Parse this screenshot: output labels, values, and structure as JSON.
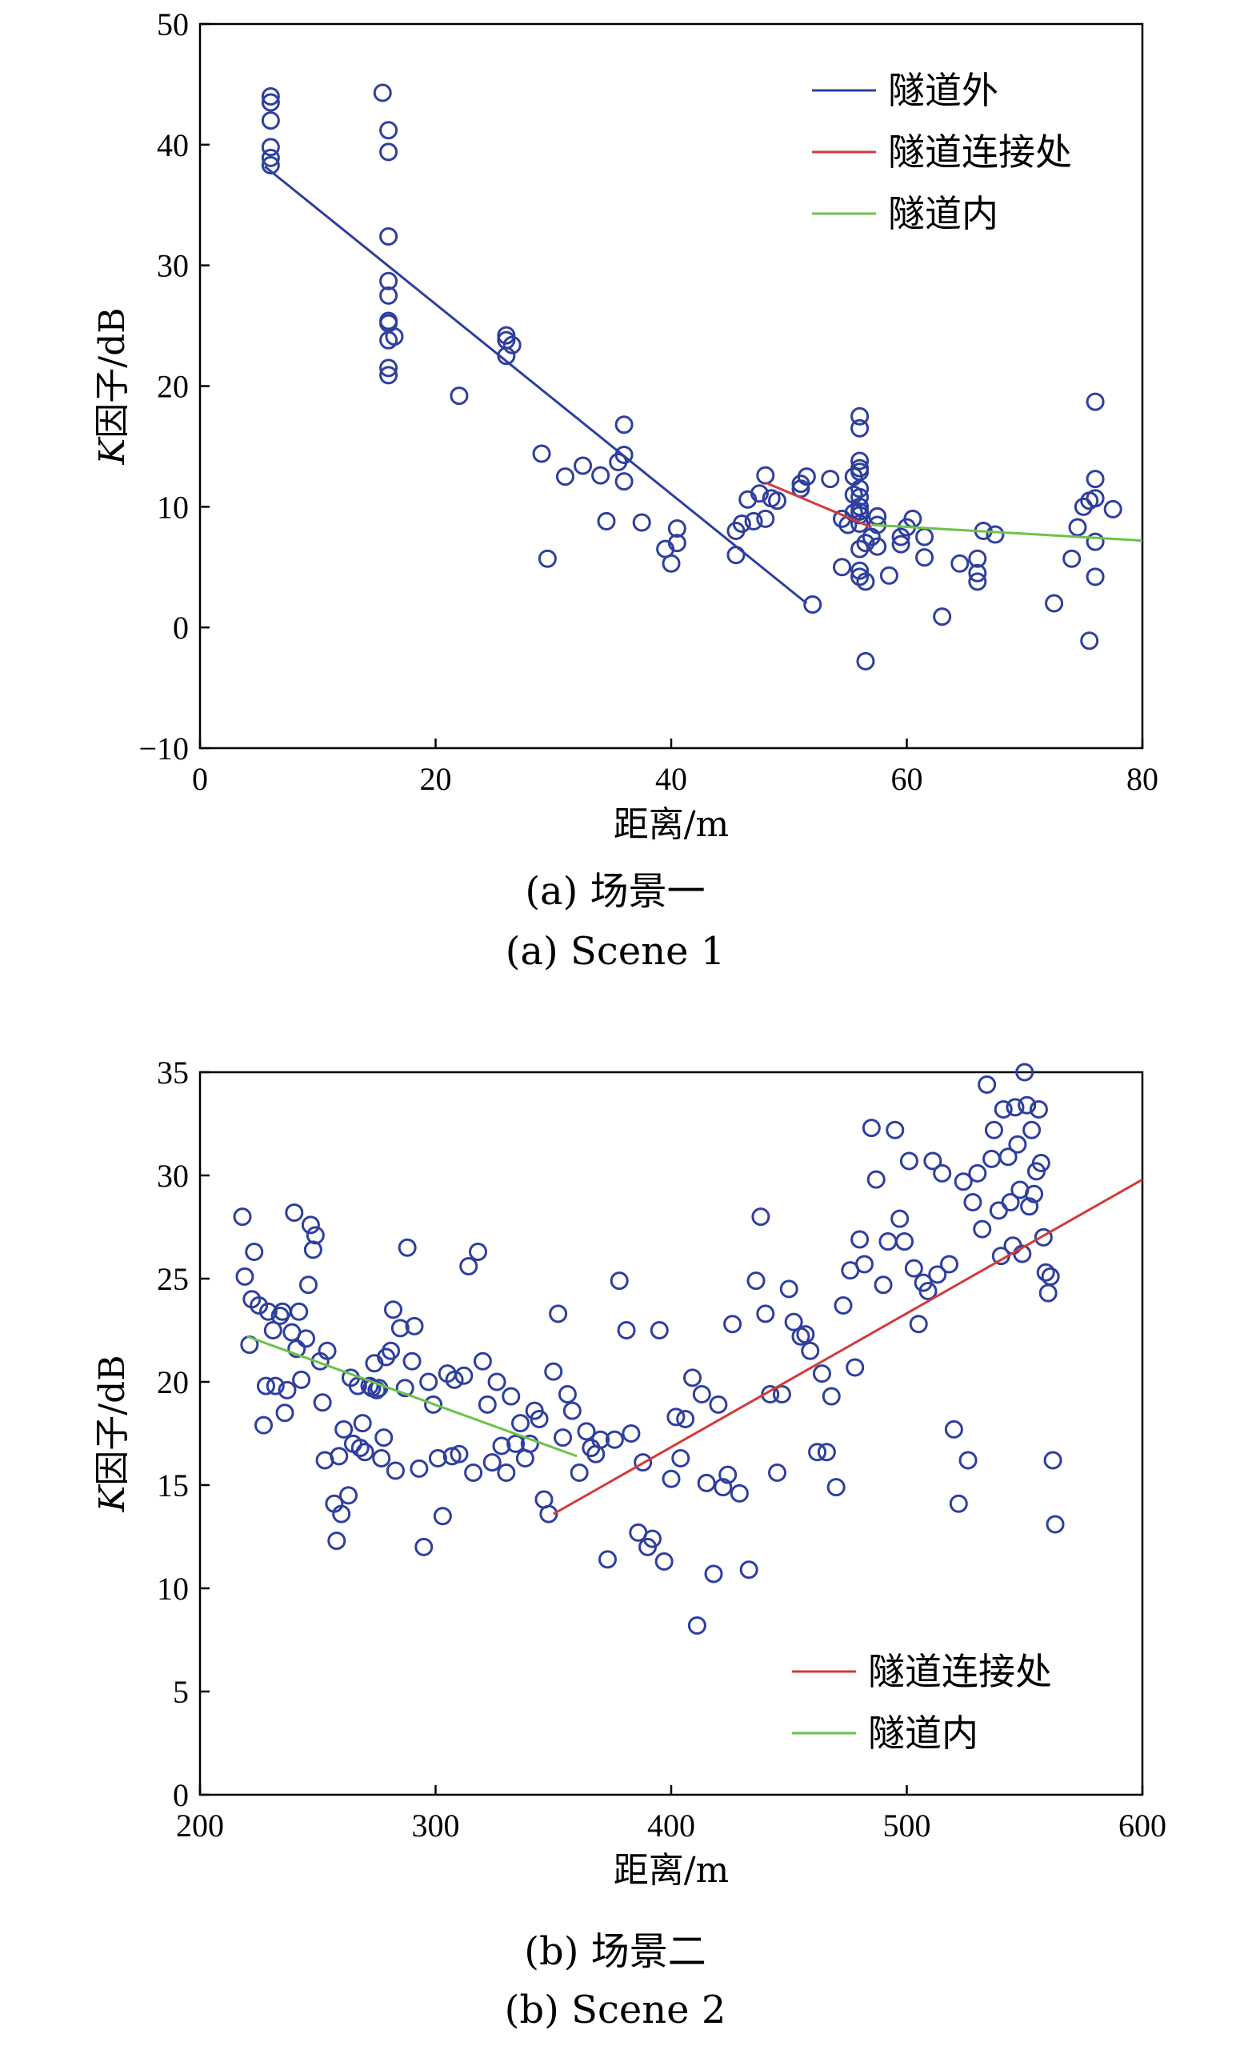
{
  "chart_data": [
    {
      "type": "scatter",
      "xlabel": "距离/m",
      "ylabel_italic": "K",
      "ylabel_rest": "因子/dB",
      "xlim": [
        0,
        80
      ],
      "ylim": [
        -10,
        50
      ],
      "xticks": [
        0,
        20,
        40,
        60,
        80
      ],
      "yticks": [
        -10,
        0,
        10,
        20,
        30,
        40,
        50
      ],
      "xtick_labels": [
        "0",
        "20",
        "40",
        "60",
        "80"
      ],
      "ytick_labels": [
        "−10",
        "0",
        "10",
        "20",
        "30",
        "40",
        "50"
      ],
      "grid": false,
      "legend_position": "top-right",
      "caption_cn": "(a) 场景一",
      "caption_en": "(a) Scene 1",
      "marker_color": "#2e3f9e",
      "points": [
        [
          6,
          44
        ],
        [
          6,
          43.5
        ],
        [
          6,
          42
        ],
        [
          6,
          39.8
        ],
        [
          6,
          38.9
        ],
        [
          6,
          38.3
        ],
        [
          15.5,
          44.3
        ],
        [
          16,
          41.2
        ],
        [
          16,
          39.4
        ],
        [
          16,
          32.4
        ],
        [
          16,
          28.7
        ],
        [
          16,
          27.5
        ],
        [
          16,
          25.4
        ],
        [
          16,
          25.2
        ],
        [
          16,
          23.8
        ],
        [
          16.5,
          24.1
        ],
        [
          16,
          21.5
        ],
        [
          16,
          20.9
        ],
        [
          22,
          19.2
        ],
        [
          26,
          24.2
        ],
        [
          26,
          23.8
        ],
        [
          26.5,
          23.4
        ],
        [
          26,
          22.5
        ],
        [
          29,
          14.4
        ],
        [
          29.5,
          5.7
        ],
        [
          31,
          12.5
        ],
        [
          32.5,
          13.4
        ],
        [
          34,
          12.6
        ],
        [
          34.5,
          8.8
        ],
        [
          35.5,
          13.7
        ],
        [
          36,
          16.8
        ],
        [
          36,
          14.3
        ],
        [
          36,
          12.1
        ],
        [
          37.5,
          8.7
        ],
        [
          39.5,
          6.5
        ],
        [
          40,
          5.3
        ],
        [
          40.5,
          8.2
        ],
        [
          40.5,
          7
        ],
        [
          45.5,
          6
        ],
        [
          45.5,
          8
        ],
        [
          46,
          8.6
        ],
        [
          46.5,
          10.6
        ],
        [
          47,
          8.8
        ],
        [
          47.5,
          11.1
        ],
        [
          48,
          9
        ],
        [
          48,
          12.6
        ],
        [
          48.5,
          10.7
        ],
        [
          49,
          10.5
        ],
        [
          51,
          11.5
        ],
        [
          51,
          11.9
        ],
        [
          51.5,
          12.5
        ],
        [
          52,
          1.9
        ],
        [
          53.5,
          12.3
        ],
        [
          54.5,
          9
        ],
        [
          54.5,
          5
        ],
        [
          55,
          8.5
        ],
        [
          55.5,
          11
        ],
        [
          55.5,
          12.5
        ],
        [
          55.5,
          9.5
        ],
        [
          56,
          17.5
        ],
        [
          56,
          16.5
        ],
        [
          56,
          13.8
        ],
        [
          56,
          13.2
        ],
        [
          56,
          12.9
        ],
        [
          56,
          11.5
        ],
        [
          56,
          10.8
        ],
        [
          56,
          10
        ],
        [
          56,
          9.6
        ],
        [
          56,
          9.3
        ],
        [
          56,
          8.6
        ],
        [
          56,
          6.5
        ],
        [
          56,
          4.7
        ],
        [
          56,
          4.2
        ],
        [
          56.5,
          3.8
        ],
        [
          56.5,
          -2.8
        ],
        [
          56.5,
          7
        ],
        [
          57,
          7.5
        ],
        [
          57.5,
          9.2
        ],
        [
          57.5,
          8.5
        ],
        [
          57.5,
          6.7
        ],
        [
          58.5,
          4.3
        ],
        [
          59.5,
          7.5
        ],
        [
          59.5,
          6.9
        ],
        [
          60,
          8.3
        ],
        [
          60.5,
          9
        ],
        [
          61.5,
          7.5
        ],
        [
          61.5,
          5.8
        ],
        [
          63,
          0.9
        ],
        [
          64.5,
          5.3
        ],
        [
          66,
          5.7
        ],
        [
          66,
          4.5
        ],
        [
          66,
          3.8
        ],
        [
          66.5,
          8
        ],
        [
          67.5,
          7.7
        ],
        [
          72.5,
          2
        ],
        [
          74,
          5.7
        ],
        [
          74.5,
          8.3
        ],
        [
          75,
          10
        ],
        [
          75.5,
          -1.1
        ],
        [
          75.5,
          10.5
        ],
        [
          76,
          18.7
        ],
        [
          76,
          12.3
        ],
        [
          76,
          10.7
        ],
        [
          76,
          7.1
        ],
        [
          76,
          4.2
        ],
        [
          77.5,
          9.8
        ]
      ],
      "series": [
        {
          "name": "隧道外",
          "color": "#2e3f9e",
          "x": [
            5.5,
            51.5
          ],
          "y": [
            38.2,
            2.0
          ]
        },
        {
          "name": "隧道连接处",
          "color": "#d23a3a",
          "x": [
            48,
            57
          ],
          "y": [
            12.0,
            8.3
          ]
        },
        {
          "name": "隧道内",
          "color": "#6cc24a",
          "x": [
            57,
            80
          ],
          "y": [
            8.5,
            7.2
          ]
        }
      ]
    },
    {
      "type": "scatter",
      "xlabel": "距离/m",
      "ylabel_italic": "K",
      "ylabel_rest": "因子/dB",
      "xlim": [
        200,
        600
      ],
      "ylim": [
        0,
        35
      ],
      "xticks": [
        200,
        300,
        400,
        500,
        600
      ],
      "yticks": [
        0,
        5,
        10,
        15,
        20,
        25,
        30,
        35
      ],
      "xtick_labels": [
        "200",
        "300",
        "400",
        "500",
        "600"
      ],
      "ytick_labels": [
        "0",
        "5",
        "10",
        "15",
        "20",
        "25",
        "30",
        "35"
      ],
      "grid": false,
      "legend_position": "bottom-right",
      "caption_cn": "(b) 场景二",
      "caption_en": "(b) Scene 2",
      "marker_color": "#2e3f9e",
      "points": [
        [
          218,
          28
        ],
        [
          219,
          25.1
        ],
        [
          221,
          21.8
        ],
        [
          222,
          24
        ],
        [
          223,
          26.3
        ],
        [
          225,
          23.7
        ],
        [
          227,
          17.9
        ],
        [
          228,
          19.8
        ],
        [
          229,
          23.4
        ],
        [
          231,
          22.5
        ],
        [
          232,
          19.8
        ],
        [
          234,
          23.2
        ],
        [
          235,
          23.4
        ],
        [
          236,
          18.5
        ],
        [
          237,
          19.6
        ],
        [
          239,
          22.4
        ],
        [
          240,
          28.2
        ],
        [
          241,
          21.6
        ],
        [
          242,
          23.4
        ],
        [
          243,
          20.1
        ],
        [
          245,
          22.1
        ],
        [
          246,
          24.7
        ],
        [
          247,
          27.6
        ],
        [
          248,
          26.4
        ],
        [
          249,
          27.1
        ],
        [
          251,
          21
        ],
        [
          252,
          19
        ],
        [
          253,
          16.2
        ],
        [
          254,
          21.5
        ],
        [
          257,
          14.1
        ],
        [
          258,
          12.3
        ],
        [
          259,
          16.4
        ],
        [
          260,
          13.6
        ],
        [
          261,
          17.7
        ],
        [
          263,
          14.5
        ],
        [
          264,
          20.2
        ],
        [
          265,
          17
        ],
        [
          267,
          19.8
        ],
        [
          268,
          16.8
        ],
        [
          269,
          18
        ],
        [
          270,
          16.6
        ],
        [
          272,
          19.8
        ],
        [
          273,
          19.7
        ],
        [
          274,
          20.9
        ],
        [
          275,
          19.6
        ],
        [
          276,
          19.7
        ],
        [
          277,
          16.3
        ],
        [
          278,
          17.3
        ],
        [
          279,
          21.2
        ],
        [
          281,
          21.5
        ],
        [
          282,
          23.5
        ],
        [
          283,
          15.7
        ],
        [
          285,
          22.6
        ],
        [
          287,
          19.7
        ],
        [
          288,
          26.5
        ],
        [
          290,
          21
        ],
        [
          291,
          22.7
        ],
        [
          293,
          15.8
        ],
        [
          295,
          12
        ],
        [
          297,
          20
        ],
        [
          299,
          18.9
        ],
        [
          301,
          16.3
        ],
        [
          303,
          13.5
        ],
        [
          305,
          20.4
        ],
        [
          307,
          16.4
        ],
        [
          308,
          20.1
        ],
        [
          310,
          16.5
        ],
        [
          312,
          20.3
        ],
        [
          314,
          25.6
        ],
        [
          316,
          15.6
        ],
        [
          318,
          26.3
        ],
        [
          320,
          21
        ],
        [
          322,
          18.9
        ],
        [
          324,
          16.1
        ],
        [
          326,
          20
        ],
        [
          328,
          16.9
        ],
        [
          330,
          15.6
        ],
        [
          332,
          19.3
        ],
        [
          334,
          17
        ],
        [
          336,
          18
        ],
        [
          338,
          16.3
        ],
        [
          340,
          17
        ],
        [
          342,
          18.6
        ],
        [
          344,
          18.2
        ],
        [
          346,
          14.3
        ],
        [
          348,
          13.6
        ],
        [
          350,
          20.5
        ],
        [
          352,
          23.3
        ],
        [
          354,
          17.3
        ],
        [
          356,
          19.4
        ],
        [
          358,
          18.6
        ],
        [
          361,
          15.6
        ],
        [
          364,
          17.6
        ],
        [
          366,
          16.8
        ],
        [
          368,
          16.5
        ],
        [
          370,
          17.2
        ],
        [
          373,
          11.4
        ],
        [
          376,
          17.2
        ],
        [
          378,
          24.9
        ],
        [
          381,
          22.5
        ],
        [
          383,
          17.5
        ],
        [
          386,
          12.7
        ],
        [
          388,
          16.1
        ],
        [
          390,
          12
        ],
        [
          392,
          12.4
        ],
        [
          395,
          22.5
        ],
        [
          397,
          11.3
        ],
        [
          400,
          15.3
        ],
        [
          402,
          18.3
        ],
        [
          404,
          16.3
        ],
        [
          406,
          18.2
        ],
        [
          409,
          20.2
        ],
        [
          411,
          8.2
        ],
        [
          413,
          19.4
        ],
        [
          415,
          15.1
        ],
        [
          418,
          10.7
        ],
        [
          420,
          18.9
        ],
        [
          422,
          14.9
        ],
        [
          424,
          15.5
        ],
        [
          426,
          22.8
        ],
        [
          429,
          14.6
        ],
        [
          433,
          10.9
        ],
        [
          436,
          24.9
        ],
        [
          438,
          28
        ],
        [
          440,
          23.3
        ],
        [
          442,
          19.4
        ],
        [
          445,
          15.6
        ],
        [
          447,
          19.4
        ],
        [
          450,
          24.5
        ],
        [
          452,
          22.9
        ],
        [
          455,
          22.2
        ],
        [
          457,
          22.3
        ],
        [
          459,
          21.5
        ],
        [
          462,
          16.6
        ],
        [
          464,
          20.4
        ],
        [
          466,
          16.6
        ],
        [
          468,
          19.3
        ],
        [
          470,
          14.9
        ],
        [
          473,
          23.7
        ],
        [
          476,
          25.4
        ],
        [
          478,
          20.7
        ],
        [
          480,
          26.9
        ],
        [
          482,
          25.7
        ],
        [
          485,
          32.3
        ],
        [
          487,
          29.8
        ],
        [
          490,
          24.7
        ],
        [
          492,
          26.8
        ],
        [
          495,
          32.2
        ],
        [
          497,
          27.9
        ],
        [
          499,
          26.8
        ],
        [
          501,
          30.7
        ],
        [
          503,
          25.5
        ],
        [
          505,
          22.8
        ],
        [
          507,
          24.8
        ],
        [
          509,
          24.4
        ],
        [
          511,
          30.7
        ],
        [
          513,
          25.2
        ],
        [
          515,
          30.1
        ],
        [
          518,
          25.7
        ],
        [
          520,
          17.7
        ],
        [
          522,
          14.1
        ],
        [
          524,
          29.7
        ],
        [
          526,
          16.2
        ],
        [
          528,
          28.7
        ],
        [
          530,
          30.1
        ],
        [
          532,
          27.4
        ],
        [
          534,
          34.4
        ],
        [
          536,
          30.8
        ],
        [
          537,
          32.2
        ],
        [
          539,
          28.3
        ],
        [
          540,
          26.1
        ],
        [
          541,
          33.2
        ],
        [
          543,
          30.9
        ],
        [
          544,
          28.7
        ],
        [
          545,
          26.6
        ],
        [
          546,
          33.3
        ],
        [
          547,
          31.5
        ],
        [
          548,
          29.3
        ],
        [
          549,
          26.2
        ],
        [
          550,
          35
        ],
        [
          551,
          33.4
        ],
        [
          552,
          28.5
        ],
        [
          553,
          32.2
        ],
        [
          554,
          29.1
        ],
        [
          555,
          30.2
        ],
        [
          556,
          33.2
        ],
        [
          557,
          30.6
        ],
        [
          558,
          27
        ],
        [
          559,
          25.3
        ],
        [
          560,
          24.3
        ],
        [
          561,
          25.1
        ],
        [
          562,
          16.2
        ],
        [
          563,
          13.1
        ]
      ],
      "series": [
        {
          "name": "隧道连接处",
          "color": "#d23a3a",
          "x": [
            350,
            600
          ],
          "y": [
            13.6,
            29.8
          ]
        },
        {
          "name": "隧道内",
          "color": "#6cc24a",
          "x": [
            220,
            360
          ],
          "y": [
            22.2,
            16.4
          ]
        }
      ]
    }
  ]
}
